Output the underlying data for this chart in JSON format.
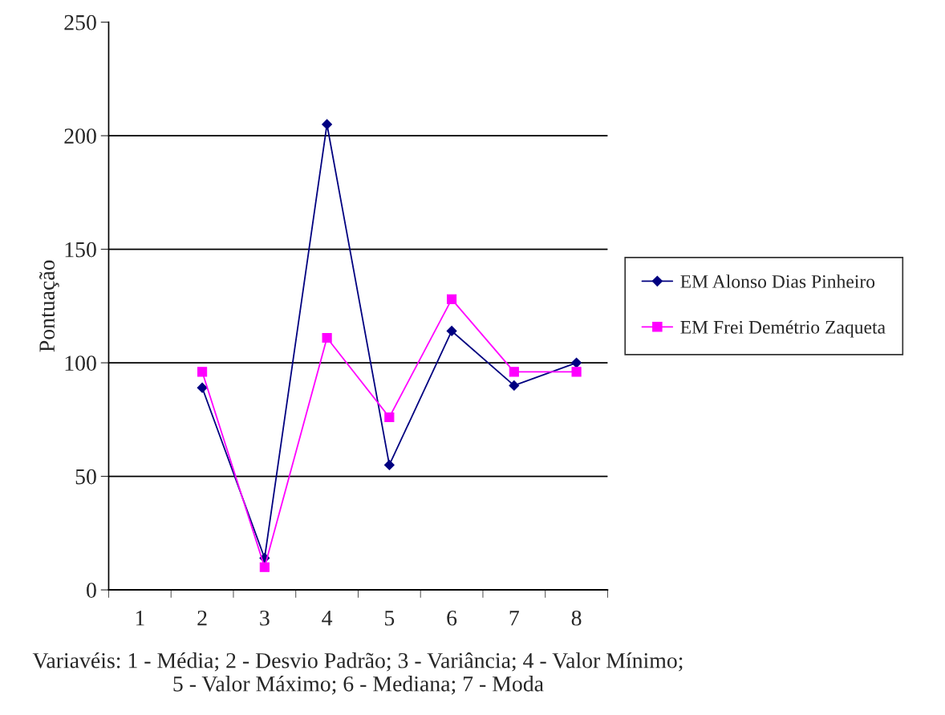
{
  "chart_data": {
    "type": "line",
    "xlabel": "Variavéis: 1 - Média; 2 - Desvio Padrão; 3 - Variância; 4 - Valor Mínimo;\n5 - Valor Máximo; 6 - Mediana; 7 - Moda",
    "ylabel": "Pontuação",
    "categories": [
      "1",
      "2",
      "3",
      "4",
      "5",
      "6",
      "7",
      "8"
    ],
    "series": [
      {
        "name": "EM Alonso Dias Pinheiro",
        "color": "#000080",
        "marker": "diamond",
        "values": [
          null,
          89,
          14,
          205,
          55,
          114,
          90,
          100
        ]
      },
      {
        "name": "EM Frei Demétrio Zaqueta",
        "color": "#ff00ff",
        "marker": "square",
        "values": [
          null,
          96,
          10,
          111,
          76,
          128,
          96,
          96
        ]
      }
    ],
    "ylim": [
      0,
      250
    ],
    "yticks": [
      0,
      50,
      100,
      150,
      200,
      250
    ],
    "grid": "y",
    "legend": "right"
  }
}
